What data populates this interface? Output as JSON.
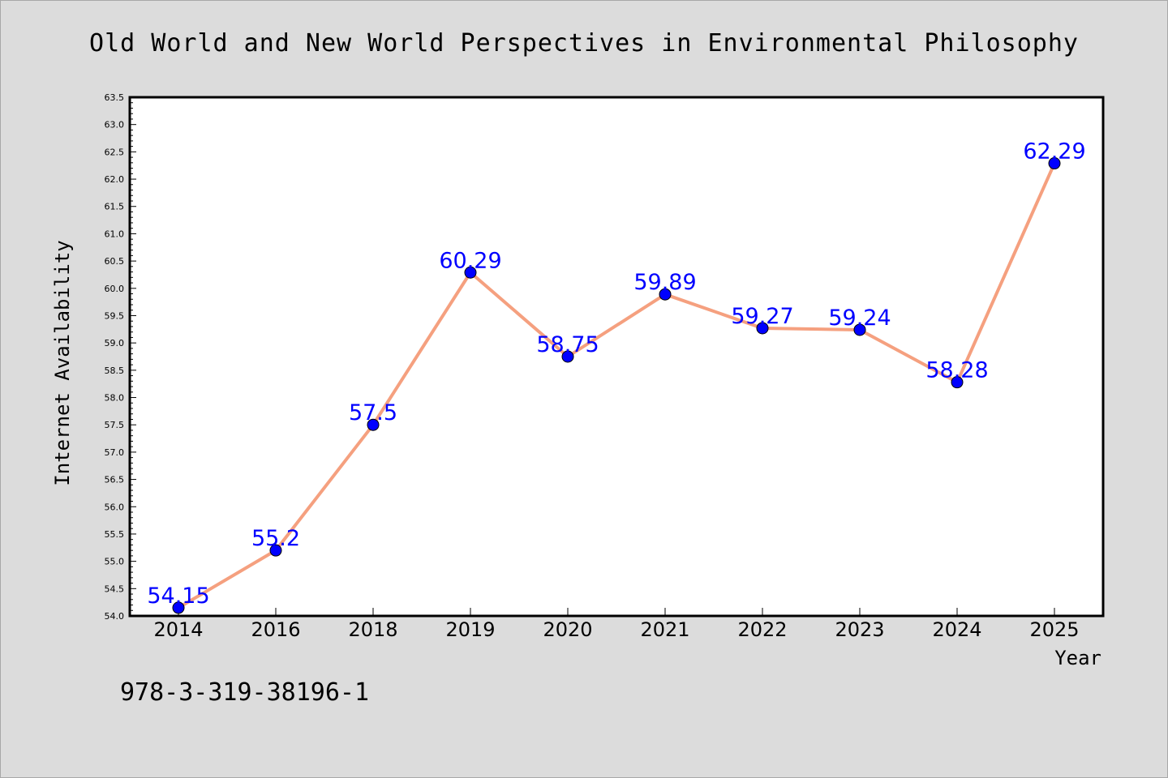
{
  "chart_data": {
    "type": "line",
    "title": "Old World and New World Perspectives in Environmental Philosophy",
    "xlabel": "Year",
    "ylabel": "Internet Availability",
    "categories": [
      "2014",
      "2016",
      "2018",
      "2019",
      "2020",
      "2021",
      "2022",
      "2023",
      "2024",
      "2025"
    ],
    "values": [
      54.15,
      55.2,
      57.5,
      60.29,
      58.75,
      59.89,
      59.27,
      59.24,
      58.28,
      62.29
    ],
    "data_labels": [
      "54.15",
      "55.2",
      "57.5",
      "60.29",
      "58.75",
      "59.89",
      "59.27",
      "59.24",
      "58.28",
      "62.29"
    ],
    "ylim": [
      54.0,
      63.5
    ],
    "yticks": [
      "54.0",
      "54.5",
      "55.0",
      "55.5",
      "56.0",
      "56.5",
      "57.0",
      "57.5",
      "58.0",
      "58.5",
      "59.0",
      "59.5",
      "60.0",
      "60.5",
      "61.0",
      "61.5",
      "62.0",
      "62.5",
      "63.0",
      "63.5"
    ],
    "grid": false,
    "legend": "none",
    "colors": {
      "line": "#f5a07f",
      "marker": "#0000ff",
      "data_label": "#0000ff",
      "background": "#dcdcdc",
      "plot_background": "#ffffff"
    }
  },
  "footer": {
    "isbn": "978-3-319-38196-1"
  }
}
